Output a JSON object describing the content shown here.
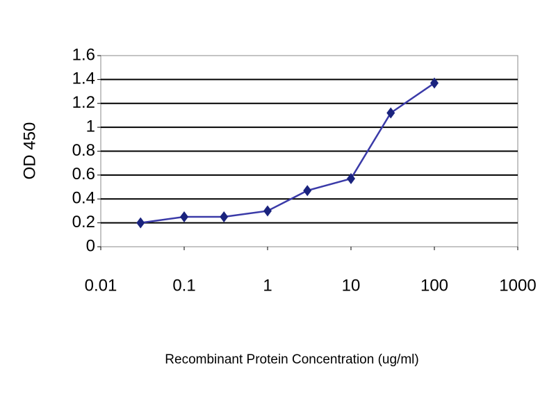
{
  "chart_data": {
    "type": "line",
    "xlabel": "Recombinant Protein Concentration (ug/ml)",
    "ylabel": "OD 450",
    "x": [
      0.03,
      0.1,
      0.3,
      1,
      3,
      10,
      30,
      100
    ],
    "series": [
      {
        "color": "#1a237e",
        "values": [
          0.2,
          0.25,
          0.25,
          0.3,
          0.47,
          0.57,
          1.12,
          1.37
        ]
      }
    ],
    "xlog": true,
    "xlim": [
      0.01,
      1000
    ],
    "xticks": [
      0.01,
      0.1,
      1,
      10,
      100,
      1000
    ],
    "ylim": [
      0,
      1.6
    ],
    "yticks": [
      0,
      0.2,
      0.4,
      0.6,
      0.8,
      1,
      1.2,
      1.4,
      1.6
    ],
    "grid": true
  }
}
